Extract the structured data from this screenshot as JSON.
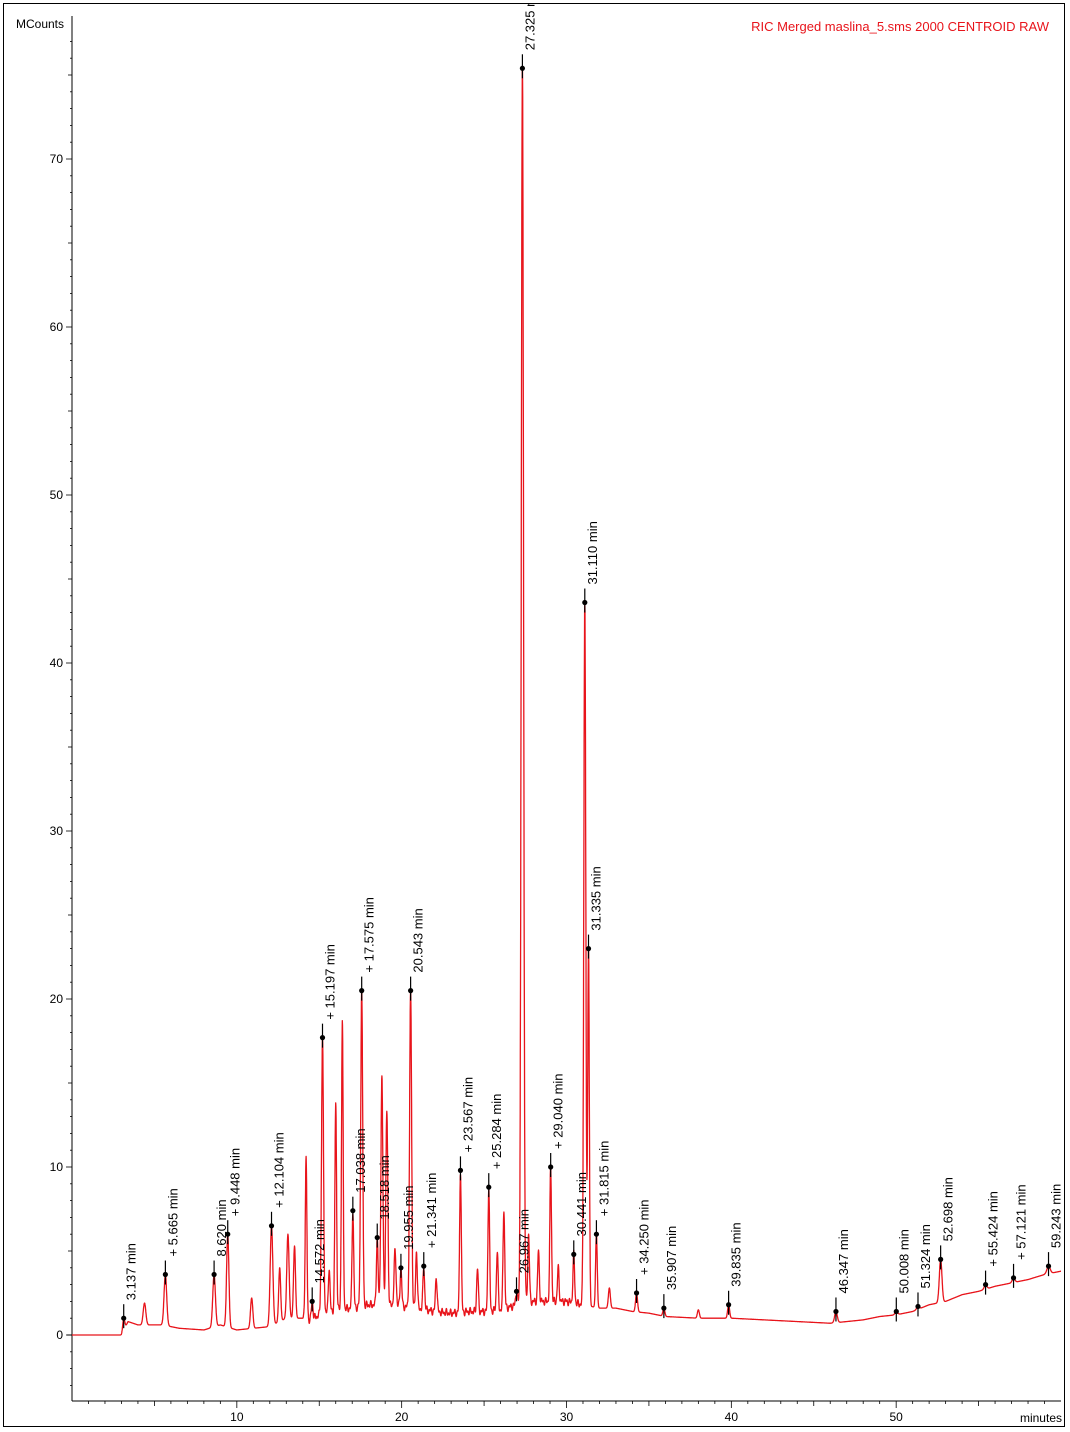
{
  "chart_data": {
    "type": "line",
    "title": "RIC Merged maslina_5.sms 2000 CENTROID RAW",
    "xlabel": "minutes",
    "ylabel": "MCounts",
    "xlim": [
      0,
      60
    ],
    "ylim": [
      -4,
      78
    ],
    "x_ticks": [
      10,
      20,
      30,
      40,
      50
    ],
    "y_ticks": [
      0,
      10,
      20,
      30,
      40,
      50,
      60,
      70
    ],
    "grid": false,
    "legend": "none",
    "colors": {
      "trace": "#e8141b",
      "title": "#e8141b",
      "axes": "#000000",
      "marker": "#000000"
    },
    "baseline": [
      [
        0,
        0
      ],
      [
        3,
        0
      ],
      [
        3.4,
        0.8
      ],
      [
        4,
        0.6
      ],
      [
        5.5,
        0.6
      ],
      [
        6.5,
        0.4
      ],
      [
        8,
        0.3
      ],
      [
        9,
        0.6
      ],
      [
        10,
        0.3
      ],
      [
        11,
        0.4
      ],
      [
        12,
        0.5
      ],
      [
        13,
        1.0
      ],
      [
        14,
        1.0
      ],
      [
        14.5,
        0.9
      ],
      [
        15,
        1.2
      ],
      [
        16,
        1.5
      ],
      [
        17,
        1.6
      ],
      [
        18,
        1.8
      ],
      [
        19,
        1.8
      ],
      [
        20,
        1.7
      ],
      [
        21,
        1.6
      ],
      [
        22,
        1.4
      ],
      [
        23,
        1.3
      ],
      [
        24,
        1.4
      ],
      [
        25,
        1.4
      ],
      [
        26,
        1.5
      ],
      [
        27,
        1.8
      ],
      [
        28,
        2.0
      ],
      [
        29,
        2.0
      ],
      [
        30,
        2.0
      ],
      [
        31,
        1.8
      ],
      [
        32,
        1.6
      ],
      [
        33,
        1.6
      ],
      [
        34,
        1.4
      ],
      [
        35,
        1.3
      ],
      [
        36,
        1.1
      ],
      [
        38,
        1.0
      ],
      [
        40,
        1.0
      ],
      [
        42,
        0.9
      ],
      [
        44,
        0.8
      ],
      [
        46,
        0.7
      ],
      [
        47,
        0.8
      ],
      [
        48,
        0.9
      ],
      [
        49,
        1.1
      ],
      [
        50,
        1.2
      ],
      [
        51,
        1.4
      ],
      [
        52,
        1.8
      ],
      [
        53,
        2.0
      ],
      [
        54,
        2.4
      ],
      [
        55,
        2.6
      ],
      [
        56,
        2.9
      ],
      [
        57,
        3.1
      ],
      [
        58,
        3.3
      ],
      [
        59,
        3.6
      ],
      [
        60,
        3.8
      ]
    ],
    "peaks": [
      {
        "x": 3.137,
        "y": 1.0,
        "w": 0.06
      },
      {
        "x": 4.4,
        "y": 1.9,
        "w": 0.08
      },
      {
        "x": 5.665,
        "y": 3.6,
        "w": 0.08
      },
      {
        "x": 8.62,
        "y": 3.6,
        "w": 0.08
      },
      {
        "x": 9.448,
        "y": 6.0,
        "w": 0.07
      },
      {
        "x": 10.9,
        "y": 2.2,
        "w": 0.07
      },
      {
        "x": 12.104,
        "y": 6.5,
        "w": 0.08
      },
      {
        "x": 12.6,
        "y": 4.0,
        "w": 0.06
      },
      {
        "x": 13.1,
        "y": 6.0,
        "w": 0.07
      },
      {
        "x": 13.5,
        "y": 5.3,
        "w": 0.06
      },
      {
        "x": 14.2,
        "y": 10.5,
        "w": 0.05
      },
      {
        "x": 14.572,
        "y": 2.0,
        "w": 0.05
      },
      {
        "x": 15.197,
        "y": 17.7,
        "w": 0.06
      },
      {
        "x": 15.6,
        "y": 4.0,
        "w": 0.05
      },
      {
        "x": 16.0,
        "y": 13.8,
        "w": 0.05
      },
      {
        "x": 16.4,
        "y": 18.6,
        "w": 0.05
      },
      {
        "x": 17.038,
        "y": 7.4,
        "w": 0.05
      },
      {
        "x": 17.575,
        "y": 20.5,
        "w": 0.06
      },
      {
        "x": 18.518,
        "y": 5.8,
        "w": 0.05
      },
      {
        "x": 18.8,
        "y": 15.3,
        "w": 0.06
      },
      {
        "x": 19.1,
        "y": 13.3,
        "w": 0.06
      },
      {
        "x": 19.6,
        "y": 5.0,
        "w": 0.06
      },
      {
        "x": 19.955,
        "y": 4.0,
        "w": 0.05
      },
      {
        "x": 20.543,
        "y": 20.5,
        "w": 0.06
      },
      {
        "x": 20.9,
        "y": 5.0,
        "w": 0.05
      },
      {
        "x": 21.341,
        "y": 4.1,
        "w": 0.05
      },
      {
        "x": 22.1,
        "y": 3.5,
        "w": 0.05
      },
      {
        "x": 23.567,
        "y": 9.8,
        "w": 0.05
      },
      {
        "x": 24.6,
        "y": 4.0,
        "w": 0.05
      },
      {
        "x": 25.284,
        "y": 8.8,
        "w": 0.05
      },
      {
        "x": 25.8,
        "y": 5.0,
        "w": 0.05
      },
      {
        "x": 26.2,
        "y": 7.5,
        "w": 0.05
      },
      {
        "x": 26.967,
        "y": 2.6,
        "w": 0.05
      },
      {
        "x": 27.325,
        "y": 75.4,
        "w": 0.07
      },
      {
        "x": 27.7,
        "y": 6.0,
        "w": 0.05
      },
      {
        "x": 28.3,
        "y": 5.0,
        "w": 0.05
      },
      {
        "x": 29.04,
        "y": 10.0,
        "w": 0.05
      },
      {
        "x": 29.5,
        "y": 4.0,
        "w": 0.05
      },
      {
        "x": 30.441,
        "y": 4.8,
        "w": 0.05
      },
      {
        "x": 31.11,
        "y": 43.6,
        "w": 0.06
      },
      {
        "x": 31.335,
        "y": 23.0,
        "w": 0.05
      },
      {
        "x": 31.815,
        "y": 6.0,
        "w": 0.05
      },
      {
        "x": 32.6,
        "y": 2.8,
        "w": 0.06
      },
      {
        "x": 34.25,
        "y": 2.5,
        "w": 0.06
      },
      {
        "x": 35.907,
        "y": 1.6,
        "w": 0.06
      },
      {
        "x": 38.0,
        "y": 1.5,
        "w": 0.06
      },
      {
        "x": 39.835,
        "y": 1.8,
        "w": 0.06
      },
      {
        "x": 46.347,
        "y": 1.4,
        "w": 0.08
      },
      {
        "x": 50.008,
        "y": 1.4,
        "w": 0.08
      },
      {
        "x": 51.324,
        "y": 1.7,
        "w": 0.08
      },
      {
        "x": 52.698,
        "y": 4.5,
        "w": 0.08
      },
      {
        "x": 55.424,
        "y": 3.0,
        "w": 0.08
      },
      {
        "x": 57.121,
        "y": 3.4,
        "w": 0.08
      },
      {
        "x": 59.243,
        "y": 4.1,
        "w": 0.1
      }
    ],
    "annotations": [
      {
        "text": "3.137 min",
        "x": 3.137,
        "y": 1.0
      },
      {
        "text": "+ 5.665 min",
        "x": 5.665,
        "y": 3.6
      },
      {
        "text": "8.620 min",
        "x": 8.62,
        "y": 3.6
      },
      {
        "text": "+ 9.448 min",
        "x": 9.448,
        "y": 6.0
      },
      {
        "text": "+ 12.104 min",
        "x": 12.104,
        "y": 6.5
      },
      {
        "text": "14.572 min",
        "x": 14.572,
        "y": 2.0
      },
      {
        "text": "+ 15.197 min",
        "x": 15.197,
        "y": 17.7
      },
      {
        "text": "17.038 min",
        "x": 17.038,
        "y": 7.4
      },
      {
        "text": "+ 17.575 min",
        "x": 17.575,
        "y": 20.5
      },
      {
        "text": "18.518 min",
        "x": 18.518,
        "y": 5.8
      },
      {
        "text": "19.955 min",
        "x": 19.955,
        "y": 4.0
      },
      {
        "text": "20.543 min",
        "x": 20.543,
        "y": 20.5
      },
      {
        "text": "+ 21.341 min",
        "x": 21.341,
        "y": 4.1
      },
      {
        "text": "+ 23.567 min",
        "x": 23.567,
        "y": 9.8
      },
      {
        "text": "+ 25.284 min",
        "x": 25.284,
        "y": 8.8
      },
      {
        "text": "26.967 min",
        "x": 26.967,
        "y": 2.6
      },
      {
        "text": "27.325 n",
        "x": 27.325,
        "y": 75.4
      },
      {
        "text": "+ 29.040 min",
        "x": 29.04,
        "y": 10.0
      },
      {
        "text": "30.441 min",
        "x": 30.441,
        "y": 4.8
      },
      {
        "text": "31.110 min",
        "x": 31.11,
        "y": 43.6
      },
      {
        "text": "31.335 min",
        "x": 31.335,
        "y": 23.0
      },
      {
        "text": "+ 31.815 min",
        "x": 31.815,
        "y": 6.0
      },
      {
        "text": "+ 34.250 min",
        "x": 34.25,
        "y": 2.5
      },
      {
        "text": "35.907 min",
        "x": 35.907,
        "y": 1.6
      },
      {
        "text": "39.835 min",
        "x": 39.835,
        "y": 1.8
      },
      {
        "text": "46.347 min",
        "x": 46.347,
        "y": 1.4
      },
      {
        "text": "50.008 min",
        "x": 50.008,
        "y": 1.4
      },
      {
        "text": "51.324 min",
        "x": 51.324,
        "y": 1.7
      },
      {
        "text": "52.698 min",
        "x": 52.698,
        "y": 4.5
      },
      {
        "text": "+ 55.424 min",
        "x": 55.424,
        "y": 3.0
      },
      {
        "text": "+ 57.121 min",
        "x": 57.121,
        "y": 3.4
      },
      {
        "text": "59.243 min",
        "x": 59.243,
        "y": 4.1
      }
    ]
  }
}
